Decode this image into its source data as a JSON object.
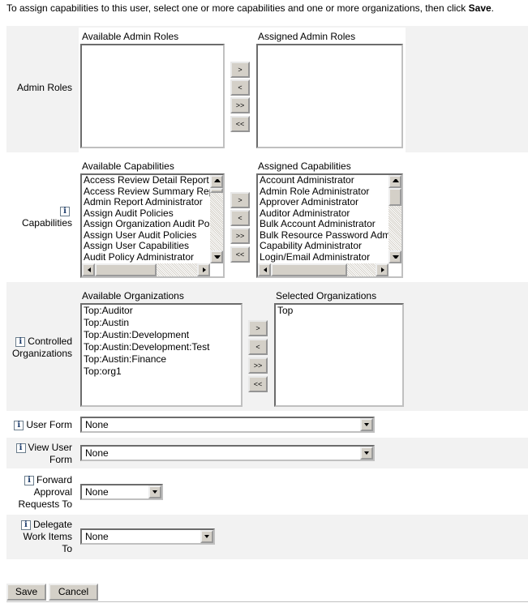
{
  "instructions": {
    "text": "To assign capabilities to this user, select one or more capabilities and one or more organizations, then click ",
    "bold": "Save",
    "end": "."
  },
  "admin_roles": {
    "label": "Admin Roles",
    "available_header": "Available Admin Roles",
    "assigned_header": "Assigned Admin Roles",
    "available": [],
    "assigned": []
  },
  "capabilities": {
    "label": "Capabilities",
    "available_header": "Available Capabilities",
    "assigned_header": "Assigned Capabilities",
    "available": [
      "Access Review Detail Report",
      "Access Review Summary Report",
      "Admin Report Administrator",
      "Assign Audit Policies",
      "Assign Organization Audit Policies",
      "Assign User Audit Policies",
      "Assign User Capabilities",
      "Audit Policy Administrator"
    ],
    "assigned": [
      "Account Administrator",
      "Admin Role Administrator",
      "Approver Administrator",
      "Auditor Administrator",
      "Bulk Account Administrator",
      "Bulk Resource Password Administrator",
      "Capability Administrator",
      "Login/Email Administrator"
    ]
  },
  "organizations": {
    "label_1": "Controlled",
    "label_2": "Organizations",
    "available_header": "Available Organizations",
    "selected_header": "Selected Organizations",
    "available": [
      "Top:Auditor",
      "Top:Austin",
      "Top:Austin:Development",
      "Top:Austin:Development:Test",
      "Top:Austin:Finance",
      "Top:org1"
    ],
    "selected": [
      "Top"
    ]
  },
  "move_buttons": {
    "add": ">",
    "remove": "<",
    "add_all": ">>",
    "remove_all": "<<"
  },
  "user_form": {
    "label": "User Form",
    "value": "None"
  },
  "view_user_form": {
    "label_1": "View User",
    "label_2": "Form",
    "value": "None"
  },
  "forward_approval": {
    "label_1": "Forward",
    "label_2": "Approval",
    "label_3": "Requests To",
    "value": "None"
  },
  "delegate": {
    "label_1": "Delegate",
    "label_2": "Work Items",
    "label_3": "To",
    "value": "None"
  },
  "info_icon": "i",
  "actions": {
    "save": "Save",
    "cancel": "Cancel"
  }
}
